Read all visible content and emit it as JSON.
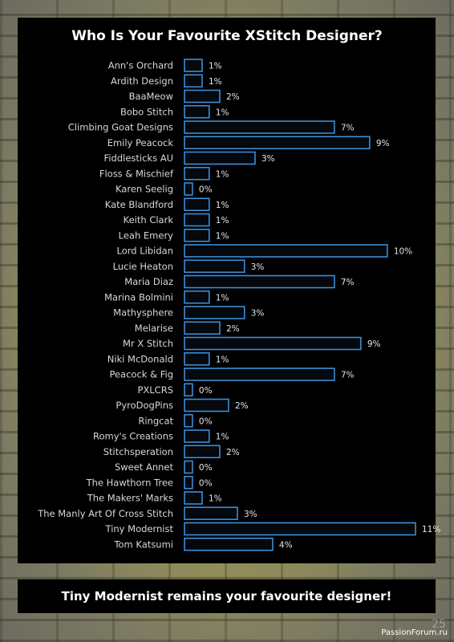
{
  "chart_data": {
    "type": "bar",
    "orientation": "horizontal",
    "title": "Who Is Your Favourite XStitch Designer?",
    "categories": [
      "Ann's Orchard",
      "Ardith Design",
      "BaaMeow",
      "Bobo Stitch",
      "Climbing Goat Designs",
      "Emily Peacock",
      "Fiddlesticks AU",
      "Floss & Mischief",
      "Karen Seelig",
      "Kate Blandford",
      "Keith Clark",
      "Leah Emery",
      "Lord Libidan",
      "Lucie Heaton",
      "Maria Diaz",
      "Marina Bolmini",
      "Mathysphere",
      "Melarise",
      "Mr X Stitch",
      "Niki McDonald",
      "Peacock & Fig",
      "PXLCRS",
      "PyroDogPins",
      "Ringcat",
      "Romy's Creations",
      "Stitchsperation",
      "Sweet Annet",
      "The Hawthorn Tree",
      "The Makers' Marks",
      "The Manly Art Of Cross Stitch",
      "Tiny Modernist",
      "Tom Katsumi"
    ],
    "values": [
      1.0,
      1.0,
      2.0,
      1.4,
      8.5,
      10.5,
      4.0,
      1.4,
      0.45,
      1.4,
      1.4,
      1.4,
      11.5,
      3.4,
      8.5,
      1.4,
      3.4,
      2.0,
      10.0,
      1.4,
      8.5,
      0.45,
      2.5,
      0.45,
      1.4,
      2.0,
      0.45,
      0.45,
      1.0,
      3.0,
      13.1,
      5.0
    ],
    "value_labels": [
      "1%",
      "1%",
      "2%",
      "1%",
      "7%",
      "9%",
      "3%",
      "1%",
      "0%",
      "1%",
      "1%",
      "1%",
      "10%",
      "3%",
      "7%",
      "1%",
      "3%",
      "2%",
      "9%",
      "1%",
      "7%",
      "0%",
      "2%",
      "0%",
      "1%",
      "2%",
      "0%",
      "0%",
      "1%",
      "3%",
      "11%",
      "4%"
    ],
    "xlim": [
      0,
      13.1
    ],
    "grid": false,
    "bar_color": "#3b8ed8"
  },
  "banner": {
    "text": "Tiny Modernist remains your favourite designer!"
  },
  "footer": {
    "site": "PassionForum.ru",
    "page_number": "25"
  }
}
